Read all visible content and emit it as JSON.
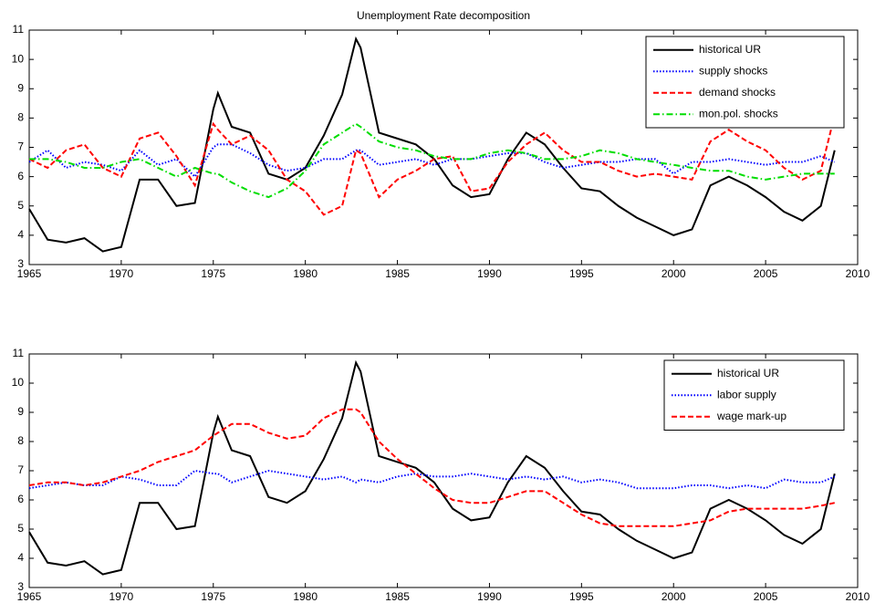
{
  "chart_data": [
    {
      "type": "line",
      "title": "Unemployment Rate decomposition",
      "x": [
        1965,
        1966,
        1967,
        1968,
        1969,
        1970,
        1971,
        1972,
        1973,
        1974,
        1975,
        1975.25,
        1976,
        1977,
        1978,
        1979,
        1980,
        1981,
        1982,
        1982.75,
        1983,
        1984,
        1985,
        1986,
        1987,
        1988,
        1989,
        1990,
        1991,
        1992,
        1993,
        1994,
        1995,
        1996,
        1997,
        1998,
        1999,
        2000,
        2001,
        2002,
        2003,
        2004,
        2005,
        2006,
        2007,
        2008,
        2008.75
      ],
      "series": [
        {
          "name": "historical UR",
          "color": "#000000",
          "linestyle": "solid",
          "values": [
            4.9,
            3.85,
            3.75,
            3.9,
            3.45,
            3.6,
            5.9,
            5.9,
            5.0,
            5.1,
            8.3,
            8.85,
            7.7,
            7.5,
            6.1,
            5.9,
            6.3,
            7.4,
            8.8,
            10.7,
            10.4,
            7.5,
            7.3,
            7.1,
            6.6,
            5.7,
            5.3,
            5.4,
            6.6,
            7.5,
            7.1,
            6.3,
            5.6,
            5.5,
            5.0,
            4.6,
            4.3,
            4.0,
            4.2,
            5.7,
            6.0,
            5.7,
            5.3,
            4.8,
            4.5,
            5.0,
            6.9
          ]
        },
        {
          "name": "supply shocks",
          "color": "#0000ff",
          "linestyle": "dotted",
          "values": [
            6.5,
            6.9,
            6.3,
            6.5,
            6.4,
            6.2,
            6.9,
            6.4,
            6.6,
            6.0,
            7.0,
            7.1,
            7.1,
            6.8,
            6.4,
            6.2,
            6.3,
            6.6,
            6.6,
            6.9,
            6.9,
            6.4,
            6.5,
            6.6,
            6.4,
            6.6,
            6.6,
            6.7,
            6.8,
            6.8,
            6.5,
            6.3,
            6.4,
            6.5,
            6.5,
            6.6,
            6.6,
            6.1,
            6.5,
            6.5,
            6.6,
            6.5,
            6.4,
            6.5,
            6.5,
            6.7,
            6.5
          ]
        },
        {
          "name": "demand shocks",
          "color": "#ff0000",
          "linestyle": "dashed",
          "values": [
            6.6,
            6.3,
            6.9,
            7.1,
            6.3,
            6.0,
            7.3,
            7.5,
            6.7,
            5.7,
            7.8,
            7.6,
            7.1,
            7.4,
            6.9,
            5.9,
            5.5,
            4.7,
            5.0,
            6.9,
            6.8,
            5.3,
            5.9,
            6.2,
            6.6,
            6.7,
            5.5,
            5.6,
            6.5,
            7.1,
            7.5,
            6.9,
            6.5,
            6.5,
            6.2,
            6.0,
            6.1,
            6.0,
            5.9,
            7.2,
            7.6,
            7.2,
            6.9,
            6.3,
            5.9,
            6.2,
            8.1
          ]
        },
        {
          "name": "mon.pol. shocks",
          "color": "#00dd00",
          "linestyle": "dashdot",
          "values": [
            6.6,
            6.6,
            6.5,
            6.3,
            6.3,
            6.5,
            6.6,
            6.3,
            6.0,
            6.3,
            6.1,
            6.1,
            5.8,
            5.5,
            5.3,
            5.6,
            6.2,
            7.1,
            7.5,
            7.8,
            7.7,
            7.2,
            7.0,
            6.9,
            6.7,
            6.6,
            6.6,
            6.8,
            6.9,
            6.8,
            6.6,
            6.6,
            6.7,
            6.9,
            6.8,
            6.6,
            6.5,
            6.4,
            6.3,
            6.2,
            6.2,
            6.0,
            5.9,
            6.0,
            6.1,
            6.1,
            6.1
          ]
        }
      ],
      "xlim": [
        1965,
        2010
      ],
      "xticks": [
        1965,
        1970,
        1975,
        1980,
        1985,
        1990,
        1995,
        2000,
        2005,
        2010
      ],
      "ylim": [
        3,
        11
      ],
      "yticks": [
        3,
        4,
        5,
        6,
        7,
        8,
        9,
        10,
        11
      ],
      "grid": false,
      "legend": "upper right"
    },
    {
      "type": "line",
      "x": [
        1965,
        1966,
        1967,
        1968,
        1969,
        1970,
        1971,
        1972,
        1973,
        1974,
        1975,
        1975.25,
        1976,
        1977,
        1978,
        1979,
        1980,
        1981,
        1982,
        1982.75,
        1983,
        1984,
        1985,
        1986,
        1987,
        1988,
        1989,
        1990,
        1991,
        1992,
        1993,
        1994,
        1995,
        1996,
        1997,
        1998,
        1999,
        2000,
        2001,
        2002,
        2003,
        2004,
        2005,
        2006,
        2007,
        2008,
        2008.75
      ],
      "series": [
        {
          "name": "historical UR",
          "color": "#000000",
          "linestyle": "solid",
          "values": [
            4.9,
            3.85,
            3.75,
            3.9,
            3.45,
            3.6,
            5.9,
            5.9,
            5.0,
            5.1,
            8.3,
            8.85,
            7.7,
            7.5,
            6.1,
            5.9,
            6.3,
            7.4,
            8.8,
            10.7,
            10.4,
            7.5,
            7.3,
            7.1,
            6.6,
            5.7,
            5.3,
            5.4,
            6.6,
            7.5,
            7.1,
            6.3,
            5.6,
            5.5,
            5.0,
            4.6,
            4.3,
            4.0,
            4.2,
            5.7,
            6.0,
            5.7,
            5.3,
            4.8,
            4.5,
            5.0,
            6.9
          ]
        },
        {
          "name": "labor supply",
          "color": "#0000ff",
          "linestyle": "dotted",
          "values": [
            6.4,
            6.5,
            6.6,
            6.5,
            6.5,
            6.8,
            6.7,
            6.5,
            6.5,
            7.0,
            6.9,
            6.9,
            6.6,
            6.8,
            7.0,
            6.9,
            6.8,
            6.7,
            6.8,
            6.6,
            6.7,
            6.6,
            6.8,
            6.9,
            6.8,
            6.8,
            6.9,
            6.8,
            6.7,
            6.8,
            6.7,
            6.8,
            6.6,
            6.7,
            6.6,
            6.4,
            6.4,
            6.4,
            6.5,
            6.5,
            6.4,
            6.5,
            6.4,
            6.7,
            6.6,
            6.6,
            6.8
          ]
        },
        {
          "name": "wage mark-up",
          "color": "#ff0000",
          "linestyle": "dashed",
          "values": [
            6.5,
            6.6,
            6.6,
            6.5,
            6.6,
            6.8,
            7.0,
            7.3,
            7.5,
            7.7,
            8.2,
            8.3,
            8.6,
            8.6,
            8.3,
            8.1,
            8.2,
            8.8,
            9.1,
            9.1,
            9.0,
            8.0,
            7.4,
            6.9,
            6.4,
            6.0,
            5.9,
            5.9,
            6.1,
            6.3,
            6.3,
            5.9,
            5.5,
            5.2,
            5.1,
            5.1,
            5.1,
            5.1,
            5.2,
            5.3,
            5.6,
            5.7,
            5.7,
            5.7,
            5.7,
            5.8,
            5.9
          ]
        }
      ],
      "xlim": [
        1965,
        2010
      ],
      "xticks": [
        1965,
        1970,
        1975,
        1980,
        1985,
        1990,
        1995,
        2000,
        2005,
        2010
      ],
      "ylim": [
        3,
        11
      ],
      "yticks": [
        3,
        4,
        5,
        6,
        7,
        8,
        9,
        10,
        11
      ],
      "grid": false,
      "legend": "upper right"
    }
  ]
}
